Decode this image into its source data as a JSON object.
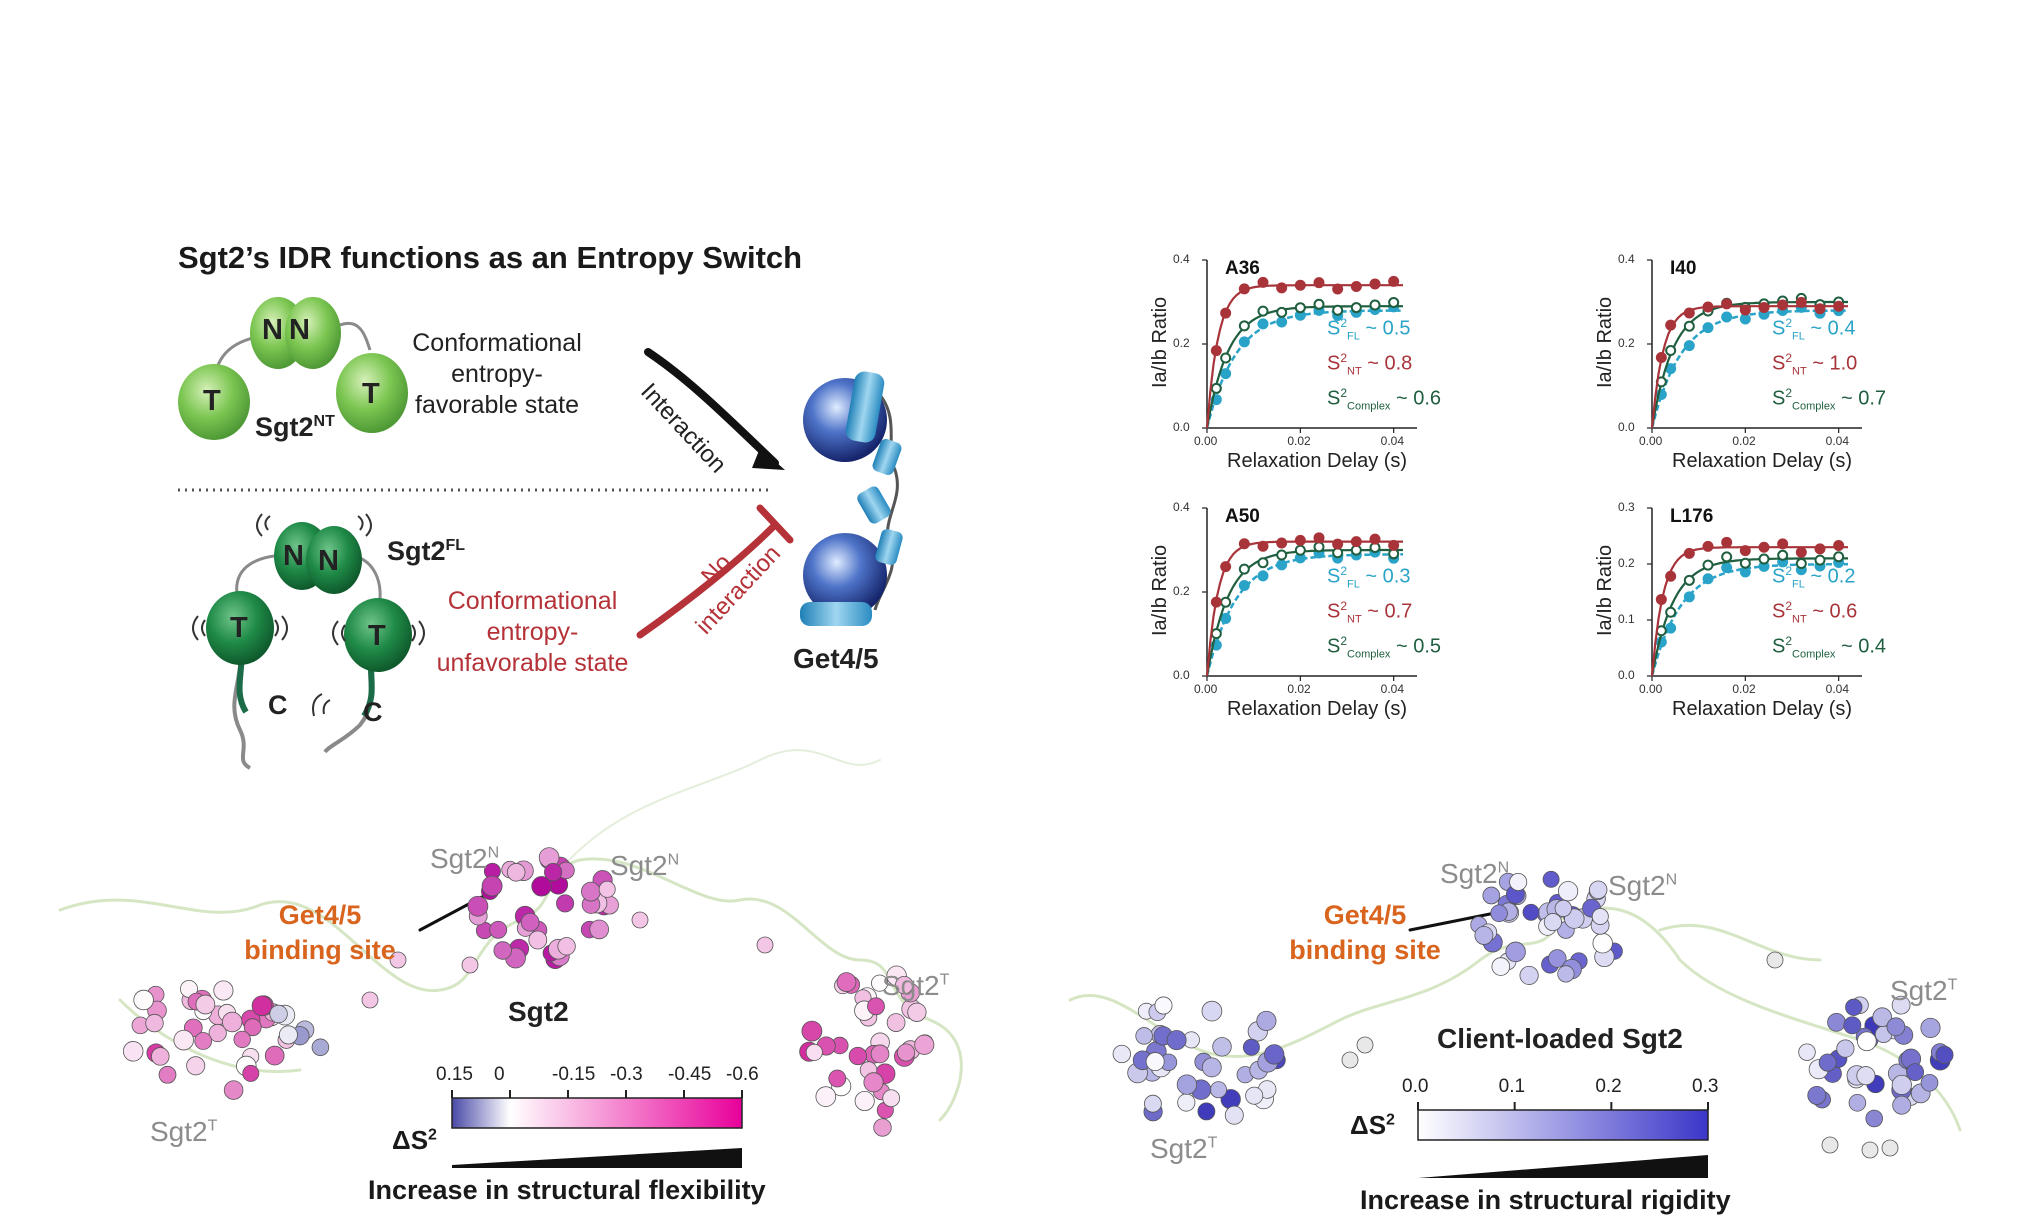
{
  "schematic": {
    "title": "Sgt2’s IDR functions as an Entropy Switch",
    "nt_domain_letters": [
      "N",
      "N",
      "T",
      "T"
    ],
    "nt_label": "Sgt2",
    "nt_label_sup": "NT",
    "favorable_state": [
      "Conformational",
      "entropy-",
      "favorable state"
    ],
    "fl_label": "Sgt2",
    "fl_label_sup": "FL",
    "fl_domain_letters": [
      "N",
      "N",
      "T",
      "T",
      "C",
      "C"
    ],
    "unfavorable_state": [
      "Conformational",
      "entropy-",
      "unfavorable state"
    ],
    "interaction_label": "Interaction",
    "no_interaction_label": [
      "No",
      "interaction"
    ],
    "get45_label": "Get4/5"
  },
  "relaxation_panels": {
    "xlabel": "Relaxation Delay (s)",
    "ylabel": "Ia/Ib Ratio",
    "panels": [
      {
        "residue": "A36",
        "ylim": [
          0,
          0.4
        ],
        "yticks": [
          "0.0",
          "0.2",
          "0.4"
        ],
        "xticks": [
          "0.00",
          "0.02",
          "0.04"
        ],
        "s2": [
          {
            "sub": "FL",
            "value": "~ 0.5"
          },
          {
            "sub": "NT",
            "value": "~ 0.8"
          },
          {
            "sub": "Complex",
            "value": "~ 0.6"
          }
        ],
        "plateaus": {
          "NT": 0.34,
          "FL": 0.28,
          "Complex": 0.29
        }
      },
      {
        "residue": "I40",
        "ylim": [
          0,
          0.4
        ],
        "yticks": [
          "0.0",
          "0.2",
          "0.4"
        ],
        "xticks": [
          "0.00",
          "0.02",
          "0.04"
        ],
        "s2": [
          {
            "sub": "FL",
            "value": "~ 0.4"
          },
          {
            "sub": "NT",
            "value": "~ 1.0"
          },
          {
            "sub": "Complex",
            "value": "~ 0.7"
          }
        ],
        "plateaus": {
          "NT": 0.29,
          "FL": 0.28,
          "Complex": 0.3
        }
      },
      {
        "residue": "A50",
        "ylim": [
          0,
          0.4
        ],
        "yticks": [
          "0.0",
          "0.2",
          "0.4"
        ],
        "xticks": [
          "0.00",
          "0.02",
          "0.04"
        ],
        "s2": [
          {
            "sub": "FL",
            "value": "~ 0.3"
          },
          {
            "sub": "NT",
            "value": "~ 0.7"
          },
          {
            "sub": "Complex",
            "value": "~ 0.5"
          }
        ],
        "plateaus": {
          "NT": 0.32,
          "FL": 0.29,
          "Complex": 0.3
        }
      },
      {
        "residue": "L176",
        "ylim": [
          0,
          0.3
        ],
        "yticks": [
          "0.0",
          "0.1",
          "0.2",
          "0.3"
        ],
        "xticks": [
          "0.00",
          "0.02",
          "0.04"
        ],
        "s2": [
          {
            "sub": "FL",
            "value": "~ 0.2"
          },
          {
            "sub": "NT",
            "value": "~ 0.6"
          },
          {
            "sub": "Complex",
            "value": "~ 0.4"
          }
        ],
        "plateaus": {
          "NT": 0.23,
          "FL": 0.2,
          "Complex": 0.21
        }
      }
    ],
    "colors": {
      "NT": "#a8343a",
      "FL": "#2aa3c8",
      "Complex": "#1f5e3e"
    }
  },
  "flexibility_panel": {
    "labels": {
      "sgt2n": "Sgt2",
      "sgt2t": "Sgt2",
      "n_sup": "N",
      "t_sup": "T",
      "center": "Sgt2"
    },
    "binding_site": [
      "Get4/5",
      "binding site"
    ],
    "colorbar": {
      "symbol": "ΔS",
      "ticks": [
        "0.15",
        "0",
        "-0.15",
        "-0.3",
        "-0.45",
        "-0.6"
      ],
      "range": [
        0.15,
        -0.6
      ],
      "colors": [
        "#4a4aa8",
        "#ffffff",
        "#e8009a"
      ]
    },
    "caption": "Increase in structural flexibility"
  },
  "rigidity_panel": {
    "labels": {
      "sgt2n": "Sgt2",
      "sgt2t": "Sgt2",
      "n_sup": "N",
      "t_sup": "T",
      "center": "Client-loaded Sgt2"
    },
    "binding_site": [
      "Get4/5",
      "binding site"
    ],
    "colorbar": {
      "symbol": "ΔS",
      "ticks": [
        "0.0",
        "0.1",
        "0.2",
        "0.3"
      ],
      "range": [
        0.0,
        0.3
      ],
      "colors": [
        "#ffffff",
        "#3b36c9"
      ]
    },
    "caption": "Increase in structural rigidity"
  }
}
